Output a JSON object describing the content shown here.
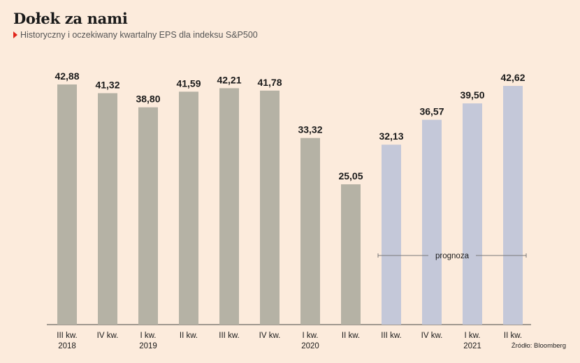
{
  "header": {
    "title": "Dołek za nami",
    "subtitle": "Historyczny i oczekiwany kwartalny EPS dla indeksu S&P500"
  },
  "source": "Źródło: Bloomberg",
  "chart_data": {
    "type": "bar",
    "title": "Dołek za nami",
    "subtitle": "Historyczny i oczekiwany kwartalny EPS dla indeksu S&P500",
    "categories": [
      [
        "III kw.",
        "2018"
      ],
      [
        "IV kw.",
        ""
      ],
      [
        "I kw.",
        "2019"
      ],
      [
        "II kw.",
        ""
      ],
      [
        "III kw.",
        ""
      ],
      [
        "IV kw.",
        ""
      ],
      [
        "I kw.",
        "2020"
      ],
      [
        "II kw.",
        ""
      ],
      [
        "III kw.",
        ""
      ],
      [
        "IV kw.",
        ""
      ],
      [
        "I kw.",
        "2021"
      ],
      [
        "II kw.",
        ""
      ]
    ],
    "values": [
      42.88,
      41.32,
      38.8,
      41.59,
      42.21,
      41.78,
      33.32,
      25.05,
      32.13,
      36.57,
      39.5,
      42.62
    ],
    "value_labels": [
      "42,88",
      "41,32",
      "38,80",
      "41,59",
      "42,21",
      "41,78",
      "33,32",
      "25,05",
      "32,13",
      "36,57",
      "39,50",
      "42,62"
    ],
    "forecast_from_index": 8,
    "forecast_label": "prognoza",
    "ylim": [
      0,
      44
    ],
    "grid": false,
    "xlabel": "",
    "ylabel": "",
    "colors": {
      "historical": "#b5b2a5",
      "forecast": "#c4c8d9",
      "background": "#fcebdc",
      "accent": "#e1251b"
    }
  }
}
